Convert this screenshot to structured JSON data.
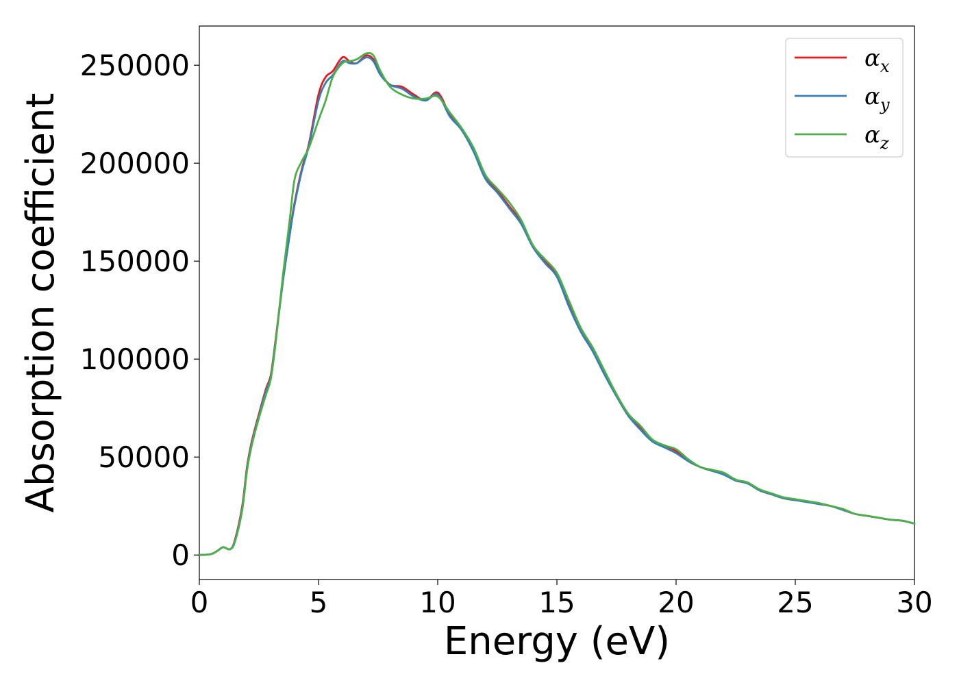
{
  "chart_data": {
    "type": "line",
    "title": "",
    "xlabel": "Energy (eV)",
    "ylabel": "Absorption coefficient",
    "xlim": [
      0,
      30
    ],
    "ylim": [
      -12500,
      270000
    ],
    "xticks": [
      0,
      5,
      10,
      15,
      20,
      25,
      30
    ],
    "yticks": [
      0,
      50000,
      100000,
      150000,
      200000,
      250000
    ],
    "grid": false,
    "legend_position": "top-right",
    "series": [
      {
        "name": "α_x",
        "legend_base": "α",
        "legend_sub": "x",
        "color": "#e41a1c",
        "x": [
          0,
          0.5,
          0.8,
          1.0,
          1.3,
          1.5,
          1.8,
          2.0,
          2.2,
          2.5,
          2.8,
          3.0,
          3.2,
          3.5,
          3.8,
          4.0,
          4.3,
          4.6,
          5.0,
          5.3,
          5.6,
          6.0,
          6.3,
          6.6,
          7.0,
          7.3,
          7.6,
          8.0,
          8.5,
          9.0,
          9.5,
          10.0,
          10.5,
          11.0,
          11.5,
          12.0,
          12.5,
          13.0,
          13.5,
          14.0,
          14.5,
          15.0,
          15.5,
          16.0,
          16.5,
          17.0,
          17.5,
          18.0,
          18.5,
          19.0,
          19.5,
          20.0,
          20.5,
          21.0,
          21.5,
          22.0,
          22.5,
          23.0,
          23.5,
          24.0,
          24.5,
          25.0,
          25.5,
          26.0,
          26.5,
          27.0,
          27.5,
          28.0,
          28.5,
          29.0,
          29.5,
          30.0
        ],
        "y": [
          0,
          500,
          2500,
          4000,
          3000,
          8000,
          25000,
          45000,
          58000,
          72000,
          85000,
          92000,
          110000,
          140000,
          165000,
          180000,
          197000,
          210000,
          235000,
          244000,
          247000,
          254000,
          252000,
          251000,
          255000,
          253000,
          246000,
          240000,
          239000,
          235000,
          232000,
          236000,
          225000,
          217000,
          207000,
          193000,
          186000,
          178000,
          170000,
          158000,
          150000,
          143000,
          128000,
          115000,
          105000,
          93000,
          82000,
          71000,
          65000,
          58000,
          56000,
          53000,
          48000,
          45000,
          43000,
          42000,
          38000,
          37000,
          33000,
          31000,
          29000,
          28000,
          27500,
          26000,
          25000,
          23000,
          21000,
          20000,
          19000,
          18000,
          17500,
          16000
        ]
      },
      {
        "name": "α_y",
        "legend_base": "α",
        "legend_sub": "y",
        "color": "#377eb8",
        "x": [
          0,
          0.5,
          0.8,
          1.0,
          1.3,
          1.5,
          1.8,
          2.0,
          2.2,
          2.5,
          2.8,
          3.0,
          3.2,
          3.5,
          3.8,
          4.0,
          4.3,
          4.6,
          5.0,
          5.3,
          5.6,
          6.0,
          6.3,
          6.6,
          7.0,
          7.3,
          7.6,
          8.0,
          8.5,
          9.0,
          9.5,
          10.0,
          10.5,
          11.0,
          11.5,
          12.0,
          12.5,
          13.0,
          13.5,
          14.0,
          14.5,
          15.0,
          15.5,
          16.0,
          16.5,
          17.0,
          17.5,
          18.0,
          18.5,
          19.0,
          19.5,
          20.0,
          20.5,
          21.0,
          21.5,
          22.0,
          22.5,
          23.0,
          23.5,
          24.0,
          24.5,
          25.0,
          25.5,
          26.0,
          26.5,
          27.0,
          27.5,
          28.0,
          28.5,
          29.0,
          29.5,
          30.0
        ],
        "y": [
          0,
          500,
          2500,
          4000,
          3000,
          7500,
          24000,
          44000,
          57000,
          71000,
          84000,
          91000,
          109000,
          139000,
          164000,
          179000,
          196000,
          209000,
          232000,
          241000,
          245000,
          252000,
          251000,
          251000,
          254000,
          252000,
          245000,
          240000,
          238000,
          234000,
          232000,
          235000,
          224000,
          217000,
          206000,
          192000,
          185000,
          177000,
          169000,
          157000,
          149000,
          142000,
          127000,
          114000,
          104000,
          92000,
          81000,
          71000,
          64000,
          58000,
          55000,
          52000,
          48000,
          45000,
          43000,
          41000,
          38000,
          36500,
          33000,
          31000,
          29000,
          28000,
          27000,
          26000,
          25000,
          23000,
          21000,
          20000,
          19000,
          18000,
          17500,
          16000
        ]
      },
      {
        "name": "α_z",
        "legend_base": "α",
        "legend_sub": "z",
        "color": "#4daf4a",
        "x": [
          0,
          0.5,
          0.8,
          1.0,
          1.3,
          1.5,
          1.8,
          2.0,
          2.2,
          2.5,
          2.8,
          3.0,
          3.2,
          3.5,
          3.8,
          4.0,
          4.3,
          4.6,
          5.0,
          5.3,
          5.6,
          6.0,
          6.3,
          6.6,
          7.0,
          7.3,
          7.6,
          8.0,
          8.5,
          9.0,
          9.5,
          10.0,
          10.5,
          11.0,
          11.5,
          12.0,
          12.5,
          13.0,
          13.5,
          14.0,
          14.5,
          15.0,
          15.5,
          16.0,
          16.5,
          17.0,
          17.5,
          18.0,
          18.5,
          19.0,
          19.5,
          20.0,
          20.5,
          21.0,
          21.5,
          22.0,
          22.5,
          23.0,
          23.5,
          24.0,
          24.5,
          25.0,
          25.5,
          26.0,
          26.5,
          27.0,
          27.5,
          28.0,
          28.5,
          29.0,
          29.5,
          30.0
        ],
        "y": [
          0,
          500,
          2500,
          4000,
          3000,
          7000,
          23000,
          43000,
          56000,
          70000,
          82000,
          90000,
          108000,
          142000,
          172000,
          192000,
          201000,
          208000,
          222000,
          232000,
          244000,
          251000,
          252000,
          253000,
          256000,
          255000,
          247000,
          239000,
          235000,
          233000,
          233000,
          234000,
          226000,
          218000,
          208000,
          194000,
          187000,
          180000,
          171000,
          158000,
          151000,
          144000,
          130000,
          116000,
          106000,
          94000,
          82000,
          72000,
          66000,
          59000,
          56000,
          54000,
          49000,
          45000,
          43500,
          42000,
          38500,
          37000,
          33500,
          31500,
          29500,
          28500,
          27500,
          26500,
          25000,
          23500,
          21000,
          20000,
          19000,
          18000,
          17500,
          16000
        ]
      }
    ]
  }
}
